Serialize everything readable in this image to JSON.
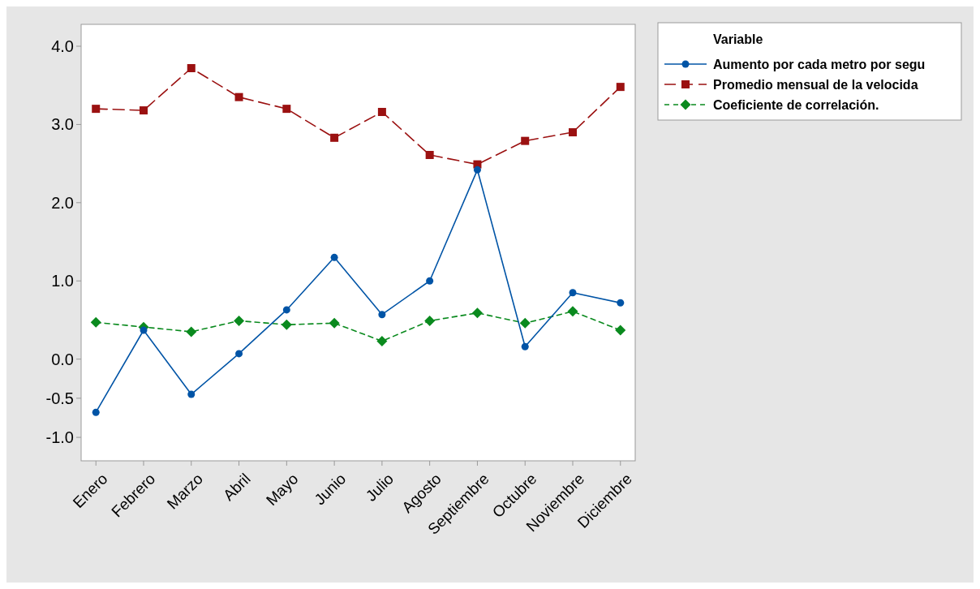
{
  "chart_data": {
    "type": "line",
    "legend_title": "Variable",
    "legend": "top right",
    "categories": [
      "Enero",
      "Febrero",
      "Marzo",
      "Abril",
      "Mayo",
      "Junio",
      "Julio",
      "Agosto",
      "Septiembre",
      "Octubre",
      "Noviembre",
      "Diciembre"
    ],
    "ylim": [
      -1.3,
      4.28
    ],
    "yticks": [
      {
        "value": 4,
        "label": "4.0"
      },
      {
        "value": 3,
        "label": "3.0"
      },
      {
        "value": 2,
        "label": "2.0"
      },
      {
        "value": 1,
        "label": "1.0"
      },
      {
        "value": 0,
        "label": "0.0"
      },
      -0.5,
      {
        "value": -1,
        "label": "-1.0"
      }
    ],
    "grid": false,
    "series": [
      {
        "name": "Aumento por cada metro por segu",
        "color": "#0054a6",
        "marker": "circle",
        "line_style": "solid",
        "values": [
          -0.68,
          0.37,
          -0.45,
          0.07,
          0.63,
          1.3,
          0.57,
          1.0,
          2.42,
          0.16,
          0.85,
          0.72
        ]
      },
      {
        "name": "Promedio mensual de la velocida",
        "color": "#9b1111",
        "marker": "square",
        "line_style": "dashed",
        "values": [
          3.2,
          3.18,
          3.72,
          3.35,
          3.2,
          2.83,
          3.16,
          2.61,
          2.49,
          2.79,
          2.9,
          3.48
        ]
      },
      {
        "name": "Coeficiente de correlación.",
        "color": "#0a8a1e",
        "marker": "diamond",
        "line_style": "dotted",
        "values": [
          0.47,
          0.41,
          0.35,
          0.49,
          0.44,
          0.46,
          0.23,
          0.49,
          0.59,
          0.46,
          0.61,
          0.37
        ]
      }
    ]
  }
}
